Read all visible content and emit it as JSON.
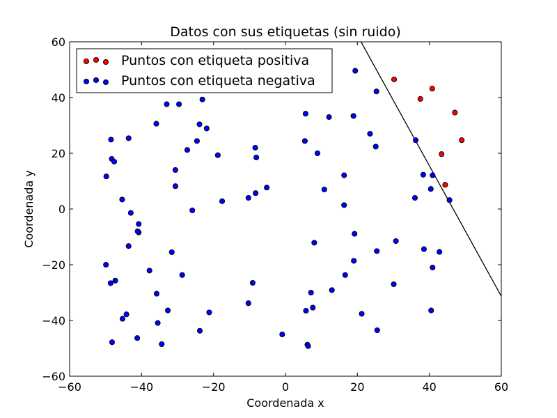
{
  "chart_data": {
    "type": "scatter",
    "title": "Datos con sus etiquetas (sin ruido)",
    "xlabel": "Coordenada x",
    "ylabel": "Coordenada y",
    "xlim": [
      -60,
      60
    ],
    "ylim": [
      -60,
      60
    ],
    "x_ticks": [
      -60,
      -40,
      -20,
      0,
      20,
      40,
      60
    ],
    "y_ticks": [
      -60,
      -40,
      -20,
      0,
      20,
      40,
      60
    ],
    "x_tick_labels": [
      "−60",
      "−40",
      "−20",
      "0",
      "20",
      "40",
      "60"
    ],
    "y_tick_labels": [
      "−60",
      "−40",
      "−20",
      "0",
      "20",
      "40",
      "60"
    ],
    "grid": false,
    "legend_position": "top-left",
    "series": [
      {
        "name": "Puntos con etiqueta positiva",
        "color": "#ff0000",
        "points": [
          [
            30.2,
            46.5
          ],
          [
            37.5,
            39.5
          ],
          [
            40.8,
            43.2
          ],
          [
            43.4,
            19.7
          ],
          [
            44.4,
            8.7
          ],
          [
            47.1,
            34.6
          ],
          [
            49.0,
            24.7
          ]
        ]
      },
      {
        "name": "Puntos con etiqueta negativa",
        "color": "#0000ff",
        "points": [
          [
            -49.8,
            11.7
          ],
          [
            -48.5,
            24.9
          ],
          [
            -48.3,
            18.0
          ],
          [
            -47.6,
            17.0
          ],
          [
            -45.4,
            3.4
          ],
          [
            -43.6,
            25.4
          ],
          [
            -43.0,
            -1.4
          ],
          [
            -40.8,
            -5.4
          ],
          [
            -40.8,
            -8.4
          ],
          [
            -41.1,
            -8.0
          ],
          [
            -43.6,
            -13.3
          ],
          [
            -35.9,
            30.6
          ],
          [
            -33.0,
            37.6
          ],
          [
            -29.6,
            37.6
          ],
          [
            -23.1,
            39.3
          ],
          [
            -23.9,
            30.4
          ],
          [
            -24.6,
            24.4
          ],
          [
            -27.3,
            21.2
          ],
          [
            -21.9,
            28.9
          ],
          [
            -18.8,
            19.3
          ],
          [
            -30.6,
            14.0
          ],
          [
            -30.6,
            8.2
          ],
          [
            -25.9,
            -0.5
          ],
          [
            -17.6,
            2.8
          ],
          [
            -10.3,
            4.0
          ],
          [
            -8.3,
            5.7
          ],
          [
            -8.4,
            22.0
          ],
          [
            -8.1,
            18.5
          ],
          [
            -5.2,
            7.7
          ],
          [
            -49.9,
            -20.0
          ],
          [
            -48.6,
            -26.6
          ],
          [
            -47.3,
            -25.7
          ],
          [
            -37.8,
            -22.1
          ],
          [
            -31.6,
            -15.5
          ],
          [
            -28.7,
            -23.7
          ],
          [
            -35.8,
            -30.4
          ],
          [
            -32.7,
            -36.4
          ],
          [
            -35.5,
            -40.9
          ],
          [
            -44.2,
            -37.8
          ],
          [
            -45.3,
            -39.4
          ],
          [
            -41.2,
            -46.3
          ],
          [
            -48.2,
            -47.8
          ],
          [
            -34.4,
            -48.5
          ],
          [
            -21.2,
            -37.1
          ],
          [
            -23.8,
            -43.7
          ],
          [
            -10.3,
            -33.8
          ],
          [
            -9.1,
            -26.5
          ],
          [
            -0.9,
            -45.0
          ],
          [
            5.6,
            34.2
          ],
          [
            5.4,
            24.4
          ],
          [
            12.1,
            33.0
          ],
          [
            18.9,
            33.4
          ],
          [
            8.9,
            20.0
          ],
          [
            10.8,
            7.0
          ],
          [
            16.3,
            12.1
          ],
          [
            16.3,
            1.4
          ],
          [
            19.4,
            49.6
          ],
          [
            25.3,
            42.2
          ],
          [
            23.5,
            27.0
          ],
          [
            25.1,
            22.4
          ],
          [
            19.2,
            -8.9
          ],
          [
            19.0,
            -18.6
          ],
          [
            8.0,
            -12.1
          ],
          [
            16.6,
            -23.7
          ],
          [
            12.9,
            -29.1
          ],
          [
            7.1,
            -30.0
          ],
          [
            7.6,
            -35.4
          ],
          [
            5.7,
            -36.5
          ],
          [
            6.1,
            -48.7
          ],
          [
            6.3,
            -49.2
          ],
          [
            21.2,
            -37.6
          ],
          [
            25.5,
            -43.5
          ],
          [
            25.4,
            -15.1
          ],
          [
            30.1,
            -27.0
          ],
          [
            30.7,
            -11.5
          ],
          [
            36.2,
            24.7
          ],
          [
            36.0,
            4.0
          ],
          [
            38.3,
            12.3
          ],
          [
            40.9,
            12.1
          ],
          [
            40.4,
            7.2
          ],
          [
            45.6,
            3.2
          ],
          [
            38.5,
            -14.4
          ],
          [
            42.8,
            -15.4
          ],
          [
            40.9,
            -21.0
          ],
          [
            40.5,
            -36.4
          ]
        ]
      }
    ],
    "separator_line": {
      "points": [
        [
          21.0,
          60.0
        ],
        [
          60.0,
          -31.3
        ]
      ],
      "color": "#000000"
    }
  }
}
